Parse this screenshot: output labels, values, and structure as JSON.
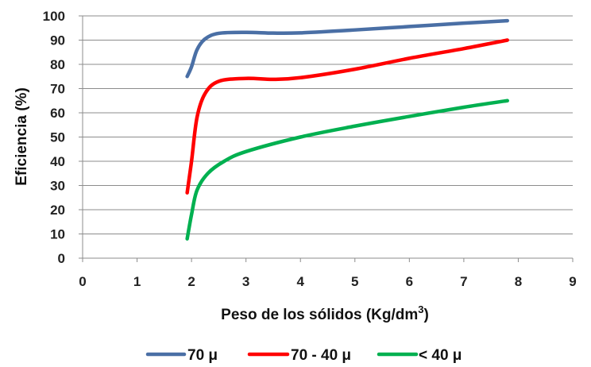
{
  "chart_data": {
    "type": "line",
    "title": "",
    "xlabel": "Peso de los sólidos (Kg/dm",
    "xlabel_sup": "3",
    "xlabel_end": ")",
    "ylabel": "Eficiencia (%)",
    "xlim": [
      0,
      9
    ],
    "ylim": [
      0,
      100
    ],
    "x_ticks": [
      0,
      1,
      2,
      3,
      4,
      5,
      6,
      7,
      8,
      9
    ],
    "y_ticks": [
      0,
      10,
      20,
      30,
      40,
      50,
      60,
      70,
      80,
      90,
      100
    ],
    "grid": "horizontal",
    "legend_position": "bottom",
    "series": [
      {
        "name": "70 μ",
        "color": "#4a6fa5",
        "points": [
          [
            1.92,
            75
          ],
          [
            2.0,
            79
          ],
          [
            2.1,
            86
          ],
          [
            2.25,
            90.5
          ],
          [
            2.5,
            92.8
          ],
          [
            3.0,
            93.2
          ],
          [
            3.5,
            92.9
          ],
          [
            4.0,
            93
          ],
          [
            5.0,
            94.2
          ],
          [
            6.0,
            95.6
          ],
          [
            7.0,
            97
          ],
          [
            7.8,
            98
          ]
        ]
      },
      {
        "name": "70 - 40 μ",
        "color": "#ff0000",
        "points": [
          [
            1.92,
            27
          ],
          [
            2.0,
            40
          ],
          [
            2.1,
            58
          ],
          [
            2.25,
            68
          ],
          [
            2.5,
            73
          ],
          [
            3.0,
            74.2
          ],
          [
            3.5,
            73.8
          ],
          [
            4.0,
            74.5
          ],
          [
            5.0,
            78
          ],
          [
            6.0,
            82.5
          ],
          [
            7.0,
            86.5
          ],
          [
            7.8,
            90
          ]
        ]
      },
      {
        "name": "< 40 μ",
        "color": "#00b050",
        "points": [
          [
            1.92,
            8
          ],
          [
            2.0,
            18
          ],
          [
            2.1,
            28
          ],
          [
            2.3,
            35
          ],
          [
            2.6,
            40
          ],
          [
            3.0,
            44
          ],
          [
            4.0,
            50
          ],
          [
            5.0,
            54.5
          ],
          [
            6.0,
            58.5
          ],
          [
            7.0,
            62.3
          ],
          [
            7.8,
            65
          ]
        ]
      }
    ]
  }
}
